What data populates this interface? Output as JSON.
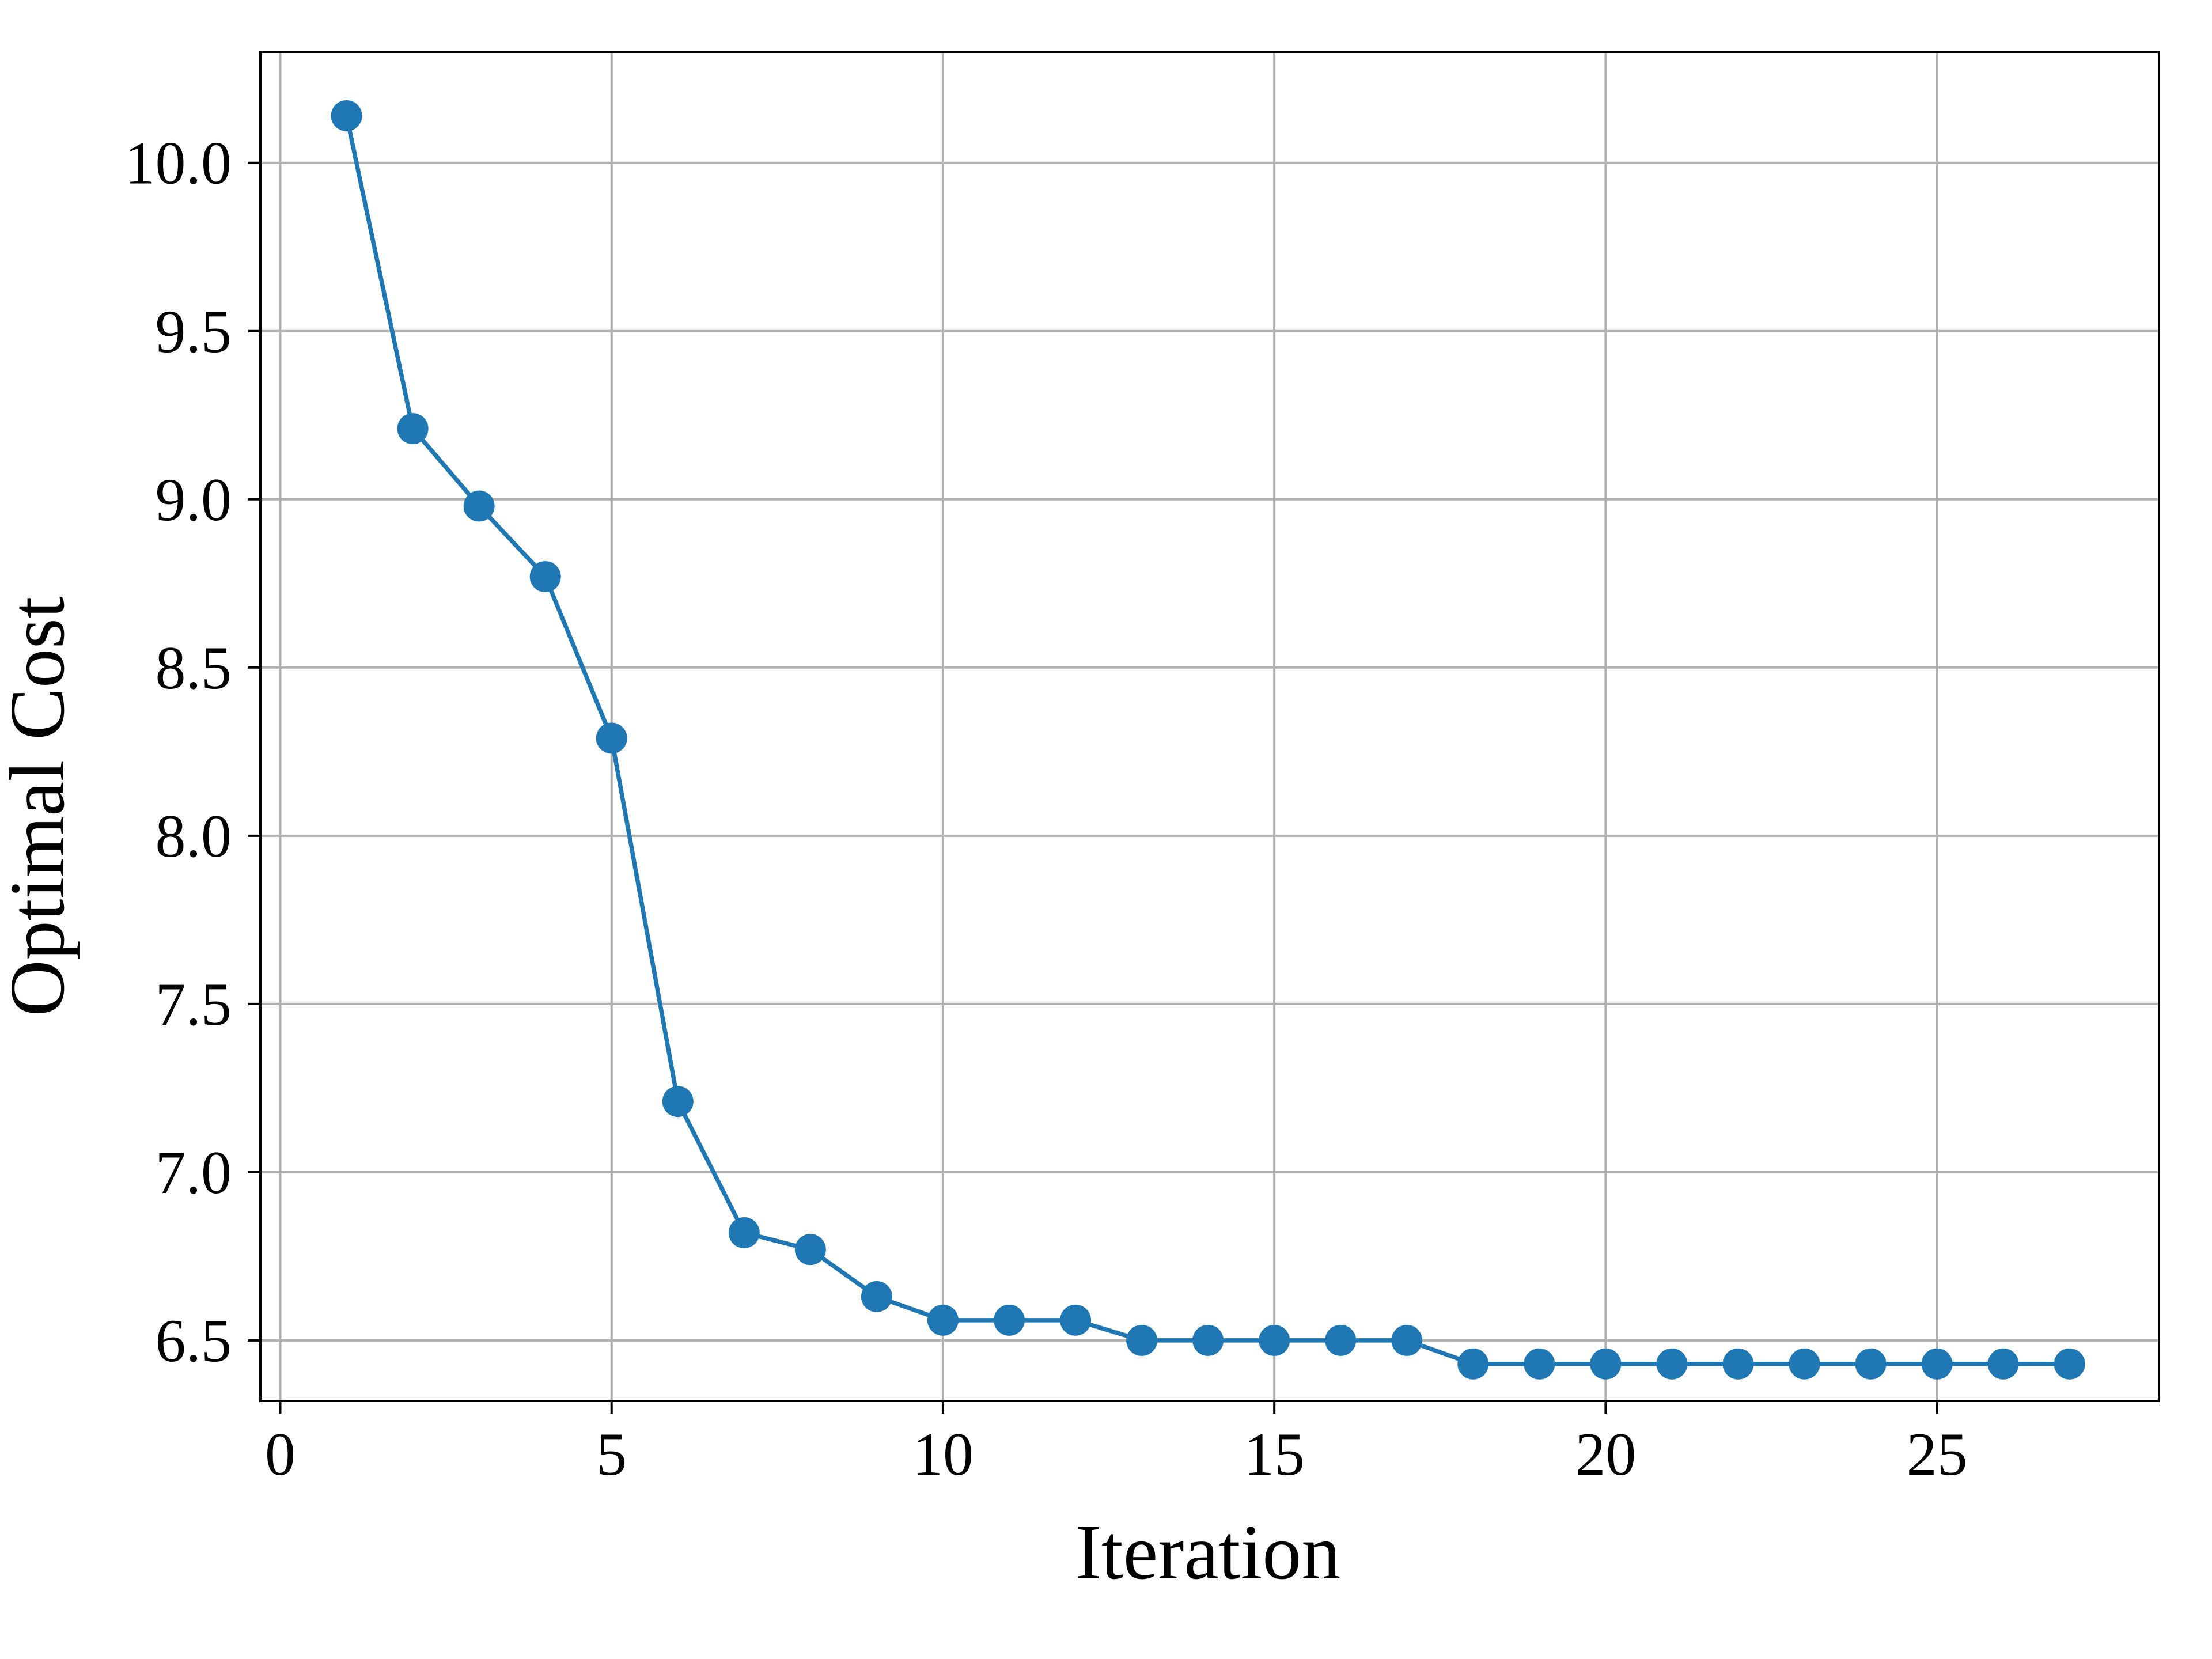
{
  "chart_data": {
    "type": "line",
    "title": "",
    "xlabel": "Iteration",
    "ylabel": "Optimal Cost",
    "xlim": [
      -0.3,
      28.35
    ],
    "ylim": [
      6.32,
      10.33
    ],
    "xticks": [
      0,
      5,
      10,
      15,
      20,
      25
    ],
    "xtick_labels": [
      "0",
      "5",
      "10",
      "15",
      "20",
      "25"
    ],
    "yticks": [
      6.5,
      7.0,
      7.5,
      8.0,
      8.5,
      9.0,
      9.5,
      10.0
    ],
    "ytick_labels": [
      "6.5",
      "7.0",
      "7.5",
      "8.0",
      "8.5",
      "9.0",
      "9.5",
      "10.0"
    ],
    "grid": true,
    "legend": "none",
    "series": [
      {
        "color": "#1f77b4",
        "marker": "circle",
        "x": [
          1,
          2,
          3,
          4,
          5,
          6,
          7,
          8,
          9,
          10,
          11,
          12,
          13,
          14,
          15,
          16,
          17,
          18,
          19,
          20,
          21,
          22,
          23,
          24,
          25,
          26,
          27
        ],
        "y": [
          10.14,
          9.21,
          8.98,
          8.77,
          8.29,
          7.21,
          6.82,
          6.77,
          6.63,
          6.56,
          6.56,
          6.56,
          6.5,
          6.5,
          6.5,
          6.5,
          6.5,
          6.43,
          6.43,
          6.43,
          6.43,
          6.43,
          6.43,
          6.43,
          6.43,
          6.43,
          6.43
        ]
      }
    ]
  }
}
